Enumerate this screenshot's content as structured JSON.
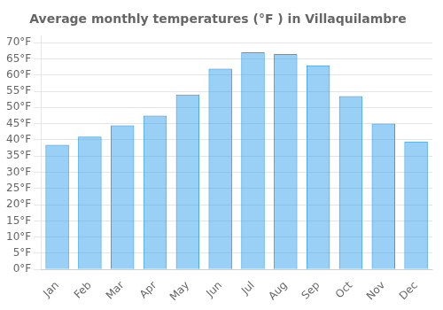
{
  "chart_data": {
    "type": "bar",
    "title": "Average monthly temperatures (°F ) in Villaquilambre",
    "categories": [
      "Jan",
      "Feb",
      "Mar",
      "Apr",
      "May",
      "Jun",
      "Jul",
      "Aug",
      "Sep",
      "Oct",
      "Nov",
      "Dec"
    ],
    "values": [
      38.5,
      41.0,
      44.5,
      47.5,
      54.0,
      62.0,
      67.0,
      66.5,
      63.0,
      53.5,
      45.0,
      39.5
    ],
    "ylim": [
      0,
      72
    ],
    "yticks": [
      {
        "value": 0,
        "label": "0°F"
      },
      {
        "value": 5,
        "label": "5°F"
      },
      {
        "value": 10,
        "label": "10°F"
      },
      {
        "value": 15,
        "label": "15°F"
      },
      {
        "value": 20,
        "label": "20°F"
      },
      {
        "value": 25,
        "label": "25°F"
      },
      {
        "value": 30,
        "label": "30°F"
      },
      {
        "value": 35,
        "label": "35°F"
      },
      {
        "value": 40,
        "label": "40°F"
      },
      {
        "value": 45,
        "label": "45°F"
      },
      {
        "value": 50,
        "label": "50°F"
      },
      {
        "value": 55,
        "label": "55°F"
      },
      {
        "value": 60,
        "label": "60°F"
      },
      {
        "value": 65,
        "label": "65°F"
      },
      {
        "value": 70,
        "label": "70°F"
      }
    ],
    "grid": true
  }
}
